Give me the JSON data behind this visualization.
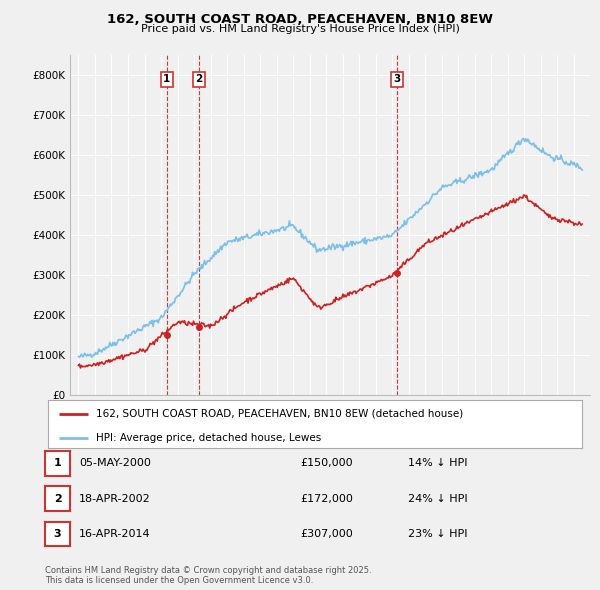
{
  "title": "162, SOUTH COAST ROAD, PEACEHAVEN, BN10 8EW",
  "subtitle": "Price paid vs. HM Land Registry's House Price Index (HPI)",
  "legend_line1": "162, SOUTH COAST ROAD, PEACEHAVEN, BN10 8EW (detached house)",
  "legend_line2": "HPI: Average price, detached house, Lewes",
  "footnote": "Contains HM Land Registry data © Crown copyright and database right 2025.\nThis data is licensed under the Open Government Licence v3.0.",
  "table": [
    {
      "num": "1",
      "date": "05-MAY-2000",
      "price": "£150,000",
      "hpi": "14% ↓ HPI"
    },
    {
      "num": "2",
      "date": "18-APR-2002",
      "price": "£172,000",
      "hpi": "24% ↓ HPI"
    },
    {
      "num": "3",
      "date": "16-APR-2014",
      "price": "£307,000",
      "hpi": "23% ↓ HPI"
    }
  ],
  "sale_markers": [
    {
      "year": 2000.35,
      "price": 150000,
      "label": "1"
    },
    {
      "year": 2002.3,
      "price": 172000,
      "label": "2"
    },
    {
      "year": 2014.3,
      "price": 307000,
      "label": "3"
    }
  ],
  "vlines": [
    2000.35,
    2002.3,
    2014.3
  ],
  "hpi_color": "#7bbfea",
  "price_color": "#cc2222",
  "marker_color": "#cc2222",
  "background_color": "#f0f0f0",
  "plot_bg_color": "#f0f0f0",
  "grid_color": "#ffffff",
  "ylim": [
    0,
    850000
  ],
  "yticks": [
    0,
    100000,
    200000,
    300000,
    400000,
    500000,
    600000,
    700000,
    800000
  ],
  "ytick_labels": [
    "£0",
    "£100K",
    "£200K",
    "£300K",
    "£400K",
    "£500K",
    "£600K",
    "£700K",
    "£800K"
  ],
  "xlim": [
    1994.5,
    2026.0
  ],
  "xticks": [
    1995,
    1996,
    1997,
    1998,
    1999,
    2000,
    2001,
    2002,
    2003,
    2004,
    2005,
    2006,
    2007,
    2008,
    2009,
    2010,
    2011,
    2012,
    2013,
    2014,
    2015,
    2016,
    2017,
    2018,
    2019,
    2020,
    2021,
    2022,
    2023,
    2024,
    2025
  ]
}
